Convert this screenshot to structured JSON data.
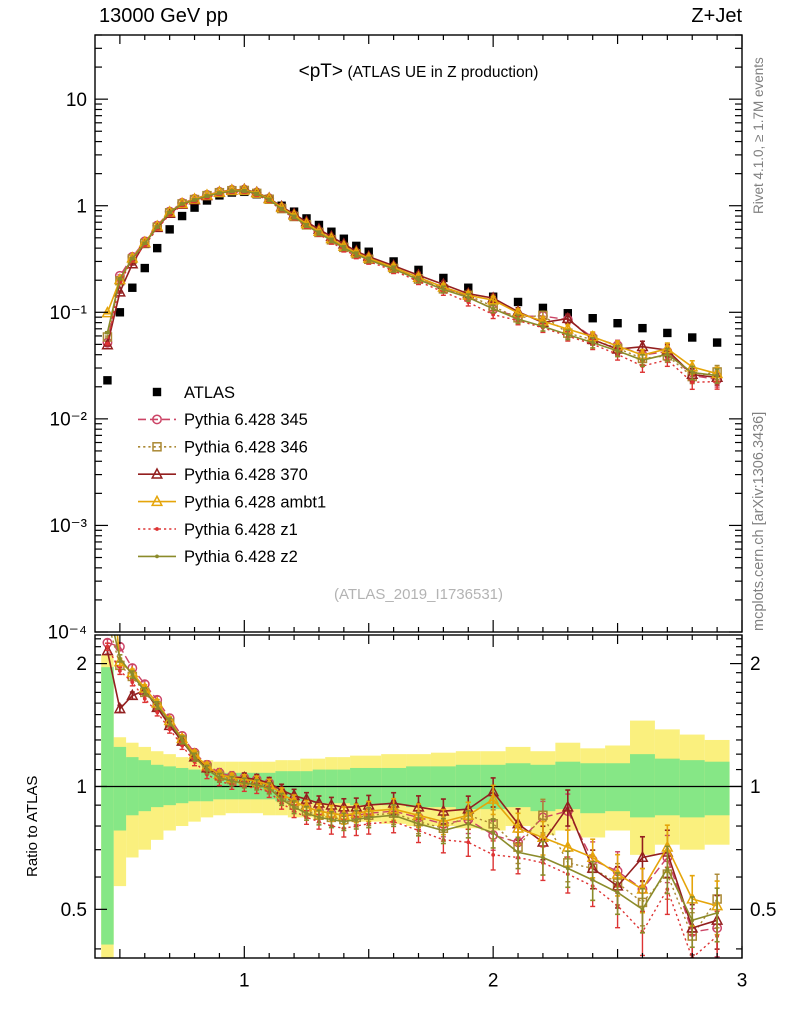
{
  "header": {
    "left": "13000 GeV pp",
    "right": "Z+Jet"
  },
  "plot": {
    "title_main": "<pT>",
    "title_sub": "(ATLAS UE in Z production)",
    "watermark": "(ATLAS_2019_I1736531)",
    "rivet_label": "Rivet 4.1.0, ≥ 1.7M events",
    "mcplots_label": "mcplots.cern.ch [arXiv:1306.3436]",
    "ratio_ylabel": "Ratio to ATLAS"
  },
  "chart_data": {
    "type": "line",
    "title": "<pT> (ATLAS UE in Z production)",
    "xlabel": "",
    "ylabel": "",
    "x_axis": {
      "scale": "linear",
      "min": 0.4,
      "max": 3.0,
      "major_ticks": [
        1,
        2,
        3
      ],
      "tick_labels": [
        "1",
        "2",
        "3"
      ]
    },
    "main_axis": {
      "scale": "log",
      "min": 0.0001,
      "max": 40,
      "ticks": [
        {
          "v": 10,
          "label": "10"
        },
        {
          "v": 1,
          "label": "1"
        },
        {
          "v": 0.1,
          "label": "10⁻¹"
        },
        {
          "v": 0.01,
          "label": "10⁻²"
        },
        {
          "v": 0.001,
          "label": "10⁻³"
        },
        {
          "v": 0.0001,
          "label": "10⁻⁴"
        }
      ]
    },
    "ratio_axis": {
      "scale": "log",
      "min": 0.38,
      "max": 2.35,
      "ticks": [
        {
          "v": 2,
          "label": "2"
        },
        {
          "v": 1,
          "label": "1"
        },
        {
          "v": 0.5,
          "label": "0.5"
        }
      ]
    },
    "x": [
      0.45,
      0.5,
      0.55,
      0.6,
      0.65,
      0.7,
      0.75,
      0.8,
      0.85,
      0.9,
      0.95,
      1.0,
      1.05,
      1.1,
      1.15,
      1.2,
      1.25,
      1.3,
      1.35,
      1.4,
      1.45,
      1.5,
      1.6,
      1.7,
      1.8,
      1.9,
      2.0,
      2.1,
      2.2,
      2.3,
      2.4,
      2.5,
      2.6,
      2.7,
      2.8,
      2.9
    ],
    "reference": {
      "name": "ATLAS",
      "color": "#000000",
      "marker": "square-filled",
      "values": [
        0.023,
        0.1,
        0.17,
        0.26,
        0.4,
        0.6,
        0.8,
        0.96,
        1.12,
        1.25,
        1.33,
        1.35,
        1.28,
        1.15,
        1.0,
        0.88,
        0.76,
        0.66,
        0.57,
        0.49,
        0.42,
        0.37,
        0.3,
        0.25,
        0.21,
        0.17,
        0.14,
        0.125,
        0.11,
        0.098,
        0.088,
        0.079,
        0.071,
        0.064,
        0.058,
        0.052
      ]
    },
    "series": [
      {
        "name": "Pythia 6.428 345",
        "color": "#cc4466",
        "line": "dashed",
        "marker": "circle-open",
        "ratio_to_atlas": [
          2.25,
          2.2,
          1.95,
          1.78,
          1.63,
          1.47,
          1.33,
          1.21,
          1.13,
          1.08,
          1.06,
          1.05,
          1.04,
          1.02,
          0.96,
          0.92,
          0.89,
          0.87,
          0.86,
          0.85,
          0.85,
          0.86,
          0.87,
          0.84,
          0.81,
          0.83,
          0.76,
          0.73,
          0.84,
          0.87,
          0.66,
          0.62,
          0.56,
          0.67,
          0.44,
          0.45
        ]
      },
      {
        "name": "Pythia 6.428 346",
        "color": "#aa8833",
        "line": "dotted",
        "marker": "square-open",
        "ratio_to_atlas": [
          2.55,
          1.98,
          1.86,
          1.7,
          1.57,
          1.43,
          1.3,
          1.19,
          1.11,
          1.06,
          1.04,
          1.03,
          1.02,
          1.0,
          0.94,
          0.9,
          0.87,
          0.85,
          0.84,
          0.83,
          0.84,
          0.85,
          0.86,
          0.82,
          0.79,
          0.85,
          0.81,
          0.71,
          0.85,
          0.65,
          0.63,
          0.58,
          0.52,
          0.61,
          0.43,
          0.53
        ]
      },
      {
        "name": "Pythia 6.428 370",
        "color": "#931f1f",
        "line": "solid",
        "marker": "triangle-open",
        "ratio_to_atlas": [
          2.15,
          1.55,
          1.67,
          1.72,
          1.56,
          1.41,
          1.29,
          1.18,
          1.11,
          1.07,
          1.05,
          1.05,
          1.04,
          1.02,
          0.98,
          0.95,
          0.93,
          0.91,
          0.9,
          0.89,
          0.89,
          0.9,
          0.91,
          0.89,
          0.87,
          0.88,
          0.97,
          0.81,
          0.73,
          0.89,
          0.63,
          0.57,
          0.67,
          0.69,
          0.45,
          0.47
        ]
      },
      {
        "name": "Pythia 6.428 ambt1",
        "color": "#e5a50a",
        "line": "solid",
        "marker": "triangle-open",
        "ratio_to_atlas": [
          4.3,
          2.02,
          1.9,
          1.74,
          1.6,
          1.45,
          1.31,
          1.2,
          1.12,
          1.07,
          1.05,
          1.04,
          1.03,
          1.01,
          0.96,
          0.92,
          0.89,
          0.87,
          0.86,
          0.85,
          0.86,
          0.87,
          0.88,
          0.85,
          0.82,
          0.85,
          0.93,
          0.79,
          0.75,
          0.71,
          0.67,
          0.61,
          0.56,
          0.71,
          0.53,
          0.51
        ]
      },
      {
        "name": "Pythia 6.428 z1",
        "color": "#dd3333",
        "line": "dotted",
        "marker": "dot",
        "ratio_to_atlas": [
          2.2,
          1.92,
          1.8,
          1.64,
          1.52,
          1.38,
          1.26,
          1.15,
          1.07,
          1.03,
          1.01,
          1.0,
          0.99,
          0.97,
          0.91,
          0.87,
          0.84,
          0.82,
          0.8,
          0.79,
          0.8,
          0.81,
          0.82,
          0.78,
          0.74,
          0.73,
          0.68,
          0.67,
          0.65,
          0.61,
          0.57,
          0.51,
          0.44,
          0.56,
          0.38,
          0.43
        ]
      },
      {
        "name": "Pythia 6.428 z2",
        "color": "#8b8b2a",
        "line": "solid",
        "marker": "dot",
        "ratio_to_atlas": [
          2.8,
          2.06,
          1.88,
          1.71,
          1.58,
          1.44,
          1.3,
          1.18,
          1.1,
          1.05,
          1.03,
          1.02,
          1.01,
          0.99,
          0.93,
          0.89,
          0.86,
          0.84,
          0.83,
          0.82,
          0.83,
          0.84,
          0.85,
          0.81,
          0.78,
          0.81,
          0.77,
          0.69,
          0.67,
          0.63,
          0.59,
          0.55,
          0.5,
          0.63,
          0.47,
          0.49
        ]
      }
    ],
    "uncertainty_bands": {
      "yellow_color": "#faf07e",
      "green_color": "#86e786",
      "yellow_lo": [
        0.35,
        0.57,
        0.67,
        0.7,
        0.74,
        0.78,
        0.8,
        0.82,
        0.84,
        0.85,
        0.86,
        0.86,
        0.86,
        0.85,
        0.85,
        0.84,
        0.84,
        0.83,
        0.83,
        0.82,
        0.82,
        0.82,
        0.81,
        0.8,
        0.8,
        0.79,
        0.78,
        0.8,
        0.76,
        0.78,
        0.75,
        0.78,
        0.68,
        0.72,
        0.7,
        0.72
      ],
      "yellow_hi": [
        2.1,
        1.32,
        1.28,
        1.25,
        1.22,
        1.2,
        1.18,
        1.17,
        1.16,
        1.15,
        1.15,
        1.15,
        1.15,
        1.15,
        1.16,
        1.16,
        1.17,
        1.17,
        1.18,
        1.18,
        1.19,
        1.19,
        1.2,
        1.2,
        1.21,
        1.22,
        1.22,
        1.25,
        1.22,
        1.28,
        1.24,
        1.26,
        1.45,
        1.38,
        1.34,
        1.3
      ],
      "green_lo": [
        0.41,
        0.78,
        0.85,
        0.87,
        0.89,
        0.9,
        0.91,
        0.92,
        0.92,
        0.93,
        0.93,
        0.93,
        0.93,
        0.93,
        0.92,
        0.92,
        0.92,
        0.91,
        0.91,
        0.91,
        0.9,
        0.9,
        0.9,
        0.89,
        0.89,
        0.88,
        0.88,
        0.89,
        0.87,
        0.88,
        0.86,
        0.87,
        0.84,
        0.85,
        0.84,
        0.85
      ],
      "green_hi": [
        1.96,
        1.25,
        1.18,
        1.16,
        1.13,
        1.12,
        1.11,
        1.1,
        1.09,
        1.08,
        1.08,
        1.08,
        1.08,
        1.08,
        1.09,
        1.09,
        1.09,
        1.1,
        1.1,
        1.1,
        1.11,
        1.11,
        1.11,
        1.12,
        1.12,
        1.13,
        1.13,
        1.14,
        1.13,
        1.15,
        1.14,
        1.14,
        1.2,
        1.17,
        1.16,
        1.15
      ]
    },
    "ratio_reference_line": 1,
    "legend_position": "left-middle",
    "grid": false
  }
}
